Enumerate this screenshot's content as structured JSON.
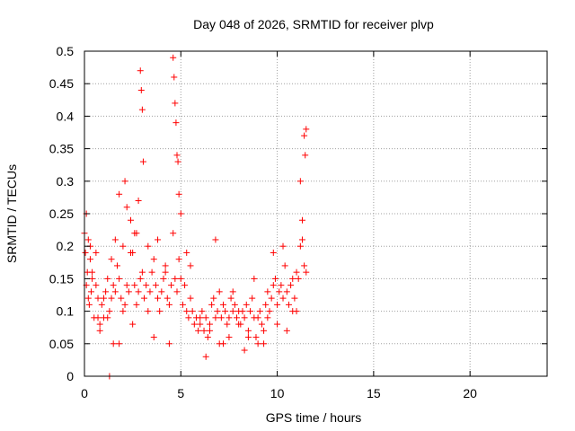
{
  "chart_data": {
    "type": "scatter",
    "title": "Day 048 of 2026, SRMTID for receiver plvp",
    "xlabel": "GPS time / hours",
    "ylabel": "SRMTID / TECUs",
    "xlim": [
      0,
      24
    ],
    "ylim": [
      0,
      0.5
    ],
    "xticks": [
      0,
      5,
      10,
      15,
      20
    ],
    "xtick_labels": [
      "0",
      "5",
      "10",
      "15",
      "20"
    ],
    "yticks": [
      0,
      0.05,
      0.1,
      0.15,
      0.2,
      0.25,
      0.3,
      0.35,
      0.4,
      0.45,
      0.5
    ],
    "ytick_labels": [
      "0",
      "0.05",
      "0.1",
      "0.15",
      "0.2",
      "0.25",
      "0.3",
      "0.35",
      "0.4",
      "0.45",
      "0.5"
    ],
    "grid": true,
    "marker": "+",
    "color": "#ff0000",
    "series": [
      {
        "name": "SRMTID",
        "x": [
          0.0,
          0.05,
          0.1,
          0.15,
          0.2,
          0.25,
          0.3,
          0.35,
          0.4,
          0.5,
          0.6,
          0.7,
          0.8,
          0.9,
          1.0,
          1.1,
          1.2,
          1.3,
          1.4,
          1.5,
          1.6,
          1.7,
          1.8,
          1.9,
          2.0,
          2.1,
          2.2,
          2.3,
          2.4,
          2.5,
          2.6,
          2.7,
          2.8,
          2.9,
          3.0,
          3.1,
          3.2,
          3.3,
          3.4,
          3.5,
          3.6,
          3.7,
          3.8,
          3.9,
          4.0,
          4.1,
          4.2,
          4.3,
          4.4,
          4.5,
          4.6,
          4.7,
          4.8,
          4.9,
          5.0,
          5.1,
          5.2,
          5.3,
          5.4,
          5.5,
          5.6,
          5.7,
          5.8,
          5.9,
          6.0,
          6.1,
          6.2,
          6.3,
          6.4,
          6.5,
          6.6,
          6.7,
          6.8,
          6.9,
          7.0,
          7.1,
          7.2,
          7.3,
          7.4,
          7.5,
          7.6,
          7.7,
          7.8,
          7.9,
          8.0,
          8.1,
          8.2,
          8.3,
          8.4,
          8.5,
          8.6,
          8.7,
          8.8,
          8.9,
          9.0,
          9.1,
          9.2,
          9.3,
          9.4,
          9.5,
          9.6,
          9.7,
          9.8,
          9.9,
          10.0,
          10.1,
          10.2,
          10.3,
          10.4,
          10.5,
          10.6,
          10.7,
          10.8,
          10.9,
          11.0,
          11.1,
          11.2,
          11.3,
          11.4,
          11.5,
          0.1,
          0.2,
          0.3,
          0.4,
          0.6,
          0.8,
          1.0,
          1.2,
          1.4,
          1.6,
          1.8,
          2.0,
          2.2,
          2.4,
          2.6,
          2.8,
          2.9,
          2.95,
          3.0,
          3.05,
          4.6,
          4.65,
          4.7,
          4.75,
          4.8,
          4.85,
          4.9,
          5.0,
          1.3,
          1.8,
          2.1,
          2.7,
          3.3,
          3.8,
          4.2,
          5.5,
          6.3,
          6.8,
          7.2,
          7.7,
          8.3,
          8.8,
          9.3,
          9.8,
          10.3,
          10.8,
          11.2,
          11.4,
          11.5,
          11.45,
          0.7,
          1.5,
          2.5,
          3.6,
          4.4,
          5.3,
          6.0,
          6.5,
          7.0,
          7.5,
          8.0,
          8.5,
          9.0,
          9.5,
          10.0,
          10.5,
          11.0,
          11.3
        ],
        "y": [
          0.22,
          0.19,
          0.14,
          0.16,
          0.12,
          0.11,
          0.2,
          0.13,
          0.15,
          0.09,
          0.14,
          0.12,
          0.07,
          0.11,
          0.09,
          0.13,
          0.15,
          0.1,
          0.12,
          0.14,
          0.21,
          0.17,
          0.15,
          0.12,
          0.1,
          0.11,
          0.14,
          0.13,
          0.24,
          0.19,
          0.14,
          0.11,
          0.13,
          0.15,
          0.16,
          0.12,
          0.14,
          0.1,
          0.13,
          0.16,
          0.18,
          0.14,
          0.12,
          0.1,
          0.13,
          0.15,
          0.17,
          0.12,
          0.11,
          0.14,
          0.22,
          0.15,
          0.13,
          0.18,
          0.15,
          0.11,
          0.14,
          0.1,
          0.09,
          0.12,
          0.1,
          0.08,
          0.09,
          0.07,
          0.08,
          0.1,
          0.07,
          0.09,
          0.06,
          0.08,
          0.11,
          0.12,
          0.09,
          0.1,
          0.13,
          0.09,
          0.11,
          0.1,
          0.08,
          0.09,
          0.12,
          0.1,
          0.11,
          0.09,
          0.1,
          0.08,
          0.1,
          0.09,
          0.11,
          0.07,
          0.1,
          0.12,
          0.09,
          0.06,
          0.09,
          0.1,
          0.08,
          0.07,
          0.11,
          0.13,
          0.1,
          0.12,
          0.14,
          0.15,
          0.11,
          0.13,
          0.14,
          0.12,
          0.17,
          0.13,
          0.11,
          0.14,
          0.1,
          0.12,
          0.16,
          0.15,
          0.2,
          0.24,
          0.17,
          0.16,
          0.25,
          0.21,
          0.18,
          0.16,
          0.19,
          0.08,
          0.12,
          0.09,
          0.18,
          0.13,
          0.28,
          0.2,
          0.26,
          0.19,
          0.22,
          0.27,
          0.47,
          0.44,
          0.41,
          0.33,
          0.49,
          0.46,
          0.42,
          0.39,
          0.34,
          0.33,
          0.28,
          0.25,
          0.0,
          0.05,
          0.3,
          0.22,
          0.2,
          0.21,
          0.16,
          0.17,
          0.03,
          0.21,
          0.05,
          0.13,
          0.04,
          0.15,
          0.05,
          0.19,
          0.2,
          0.15,
          0.3,
          0.37,
          0.38,
          0.34,
          0.09,
          0.05,
          0.08,
          0.06,
          0.05,
          0.19,
          0.09,
          0.07,
          0.05,
          0.06,
          0.08,
          0.06,
          0.05,
          0.09,
          0.08,
          0.07,
          0.1,
          0.21
        ]
      }
    ]
  }
}
